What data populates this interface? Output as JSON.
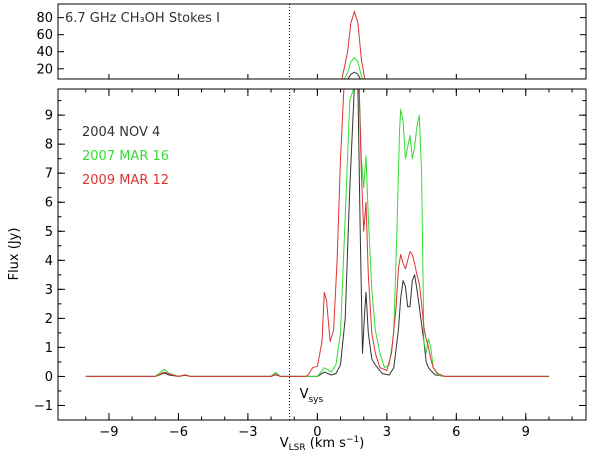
{
  "chart_data": {
    "type": "line",
    "top_panel": {
      "title": "6.7 GHz CH₃OH   Stokes I",
      "ylim": [
        8,
        96
      ],
      "yticks": [
        "20",
        "40",
        "60",
        "80"
      ],
      "peaks": [
        {
          "name": "2004 NOV 4",
          "value": 16
        },
        {
          "name": "2007 MAR 16",
          "value": 33
        },
        {
          "name": "2009 MAR 12",
          "value": 87
        }
      ]
    },
    "main_panel": {
      "xlabel": "V_LSR (km s⁻¹)",
      "xlabel_main": "V",
      "xlabel_sub": "LSR",
      "xlabel_rest": " (km s",
      "xlabel_sup": "−1",
      "xlabel_end": ")",
      "ylabel": "Flux (Jy)",
      "xlim": [
        -11.2,
        11.6
      ],
      "ylim": [
        -1.5,
        9.9
      ],
      "xticks": [
        "−9",
        "−6",
        "−3",
        "0",
        "3",
        "6",
        "9"
      ],
      "yticks": [
        "−1",
        "0",
        "1",
        "2",
        "3",
        "4",
        "5",
        "6",
        "7",
        "8",
        "9"
      ]
    },
    "vsys": {
      "x": -1.2,
      "label_main": "V",
      "label_sub": "sys"
    },
    "series": [
      {
        "name": "2004 NOV 4",
        "color": "#333333",
        "points": [
          [
            -10,
            0
          ],
          [
            -7,
            0
          ],
          [
            -6.6,
            0.12
          ],
          [
            -6.4,
            0.05
          ],
          [
            -6,
            0
          ],
          [
            -5.7,
            0.04
          ],
          [
            -5.5,
            0
          ],
          [
            -2,
            0
          ],
          [
            -1.8,
            0.06
          ],
          [
            -1.6,
            0
          ],
          [
            0,
            0
          ],
          [
            0.3,
            0.15
          ],
          [
            0.6,
            0.05
          ],
          [
            0.8,
            0.1
          ],
          [
            1.0,
            0.4
          ],
          [
            1.2,
            2.0
          ],
          [
            1.4,
            6.5
          ],
          [
            1.6,
            10
          ],
          [
            1.75,
            10
          ],
          [
            1.85,
            5.0
          ],
          [
            1.95,
            0.8
          ],
          [
            2.05,
            2.3
          ],
          [
            2.1,
            2.9
          ],
          [
            2.2,
            1.5
          ],
          [
            2.35,
            0.6
          ],
          [
            2.5,
            0.4
          ],
          [
            2.8,
            0.1
          ],
          [
            3.1,
            0.05
          ],
          [
            3.3,
            0.3
          ],
          [
            3.5,
            1.6
          ],
          [
            3.6,
            2.7
          ],
          [
            3.7,
            3.3
          ],
          [
            3.8,
            3.1
          ],
          [
            3.9,
            2.4
          ],
          [
            4.0,
            2.4
          ],
          [
            4.1,
            3.3
          ],
          [
            4.2,
            3.5
          ],
          [
            4.3,
            3.0
          ],
          [
            4.4,
            2.4
          ],
          [
            4.5,
            1.8
          ],
          [
            4.6,
            1.2
          ],
          [
            4.7,
            0.5
          ],
          [
            4.8,
            0.3
          ],
          [
            4.9,
            0.2
          ],
          [
            5.1,
            0.05
          ],
          [
            5.5,
            0
          ],
          [
            10,
            0
          ]
        ]
      },
      {
        "name": "2007 MAR 16",
        "color": "#33dd33",
        "points": [
          [
            -10,
            0
          ],
          [
            -7,
            0
          ],
          [
            -6.6,
            0.25
          ],
          [
            -6.4,
            0.1
          ],
          [
            -6,
            0
          ],
          [
            -5.7,
            0.06
          ],
          [
            -5.5,
            0
          ],
          [
            -2,
            0
          ],
          [
            -1.8,
            0.15
          ],
          [
            -1.6,
            0
          ],
          [
            0,
            0
          ],
          [
            0.3,
            0.3
          ],
          [
            0.6,
            0.15
          ],
          [
            0.8,
            0.4
          ],
          [
            1.0,
            1.5
          ],
          [
            1.2,
            5.5
          ],
          [
            1.4,
            9.5
          ],
          [
            1.6,
            10
          ],
          [
            1.8,
            10
          ],
          [
            1.9,
            7.5
          ],
          [
            2.0,
            6.5
          ],
          [
            2.1,
            7.6
          ],
          [
            2.2,
            5.5
          ],
          [
            2.35,
            3.0
          ],
          [
            2.5,
            1.6
          ],
          [
            2.7,
            0.8
          ],
          [
            2.9,
            0.3
          ],
          [
            3.1,
            0.4
          ],
          [
            3.3,
            1.5
          ],
          [
            3.45,
            5.5
          ],
          [
            3.55,
            8.5
          ],
          [
            3.6,
            9.2
          ],
          [
            3.7,
            8.8
          ],
          [
            3.8,
            7.5
          ],
          [
            3.9,
            7.9
          ],
          [
            4.0,
            8.3
          ],
          [
            4.1,
            7.5
          ],
          [
            4.2,
            7.9
          ],
          [
            4.3,
            8.6
          ],
          [
            4.4,
            9.0
          ],
          [
            4.5,
            7.0
          ],
          [
            4.6,
            1.2
          ],
          [
            4.7,
            0.8
          ],
          [
            4.8,
            1.3
          ],
          [
            4.9,
            1.0
          ],
          [
            5.0,
            0.3
          ],
          [
            5.2,
            0.05
          ],
          [
            5.5,
            0
          ],
          [
            10,
            0
          ]
        ]
      },
      {
        "name": "2009 MAR 12",
        "color": "#dd3333",
        "points": [
          [
            -10,
            0
          ],
          [
            -7,
            0
          ],
          [
            -6.6,
            0.15
          ],
          [
            -6.4,
            0.08
          ],
          [
            -6,
            0
          ],
          [
            -5.7,
            0.05
          ],
          [
            -5.5,
            0
          ],
          [
            -2,
            0
          ],
          [
            -1.8,
            0.08
          ],
          [
            -1.6,
            0
          ],
          [
            -0.5,
            0
          ],
          [
            -0.4,
            0.05
          ],
          [
            -0.2,
            0.3
          ],
          [
            0.0,
            0.35
          ],
          [
            0.2,
            1.2
          ],
          [
            0.3,
            2.9
          ],
          [
            0.4,
            2.6
          ],
          [
            0.55,
            1.2
          ],
          [
            0.7,
            1.6
          ],
          [
            0.85,
            4.0
          ],
          [
            1.0,
            7.5
          ],
          [
            1.15,
            10
          ],
          [
            1.8,
            10
          ],
          [
            1.9,
            7.0
          ],
          [
            2.0,
            5.0
          ],
          [
            2.1,
            6.0
          ],
          [
            2.2,
            3.5
          ],
          [
            2.35,
            1.5
          ],
          [
            2.5,
            0.8
          ],
          [
            2.7,
            0.3
          ],
          [
            3.0,
            0.2
          ],
          [
            3.2,
            0.8
          ],
          [
            3.4,
            2.4
          ],
          [
            3.5,
            3.7
          ],
          [
            3.6,
            4.2
          ],
          [
            3.7,
            3.9
          ],
          [
            3.8,
            3.7
          ],
          [
            3.9,
            4.0
          ],
          [
            4.0,
            4.3
          ],
          [
            4.1,
            4.2
          ],
          [
            4.2,
            3.9
          ],
          [
            4.3,
            3.5
          ],
          [
            4.4,
            3.2
          ],
          [
            4.5,
            2.5
          ],
          [
            4.6,
            1.7
          ],
          [
            4.7,
            1.3
          ],
          [
            4.8,
            1.0
          ],
          [
            4.9,
            0.6
          ],
          [
            5.0,
            0.3
          ],
          [
            5.2,
            0.1
          ],
          [
            5.5,
            0
          ],
          [
            10,
            0
          ]
        ]
      }
    ]
  }
}
